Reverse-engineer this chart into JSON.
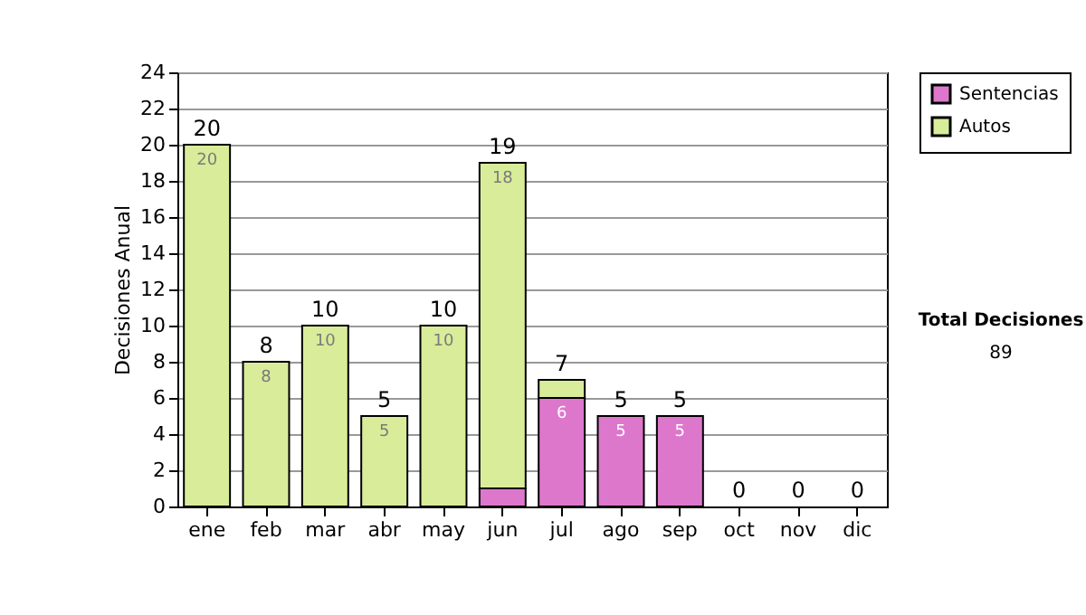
{
  "chart_data": {
    "type": "bar",
    "ylabel": "Decisiones Anual",
    "categories": [
      "ene",
      "feb",
      "mar",
      "abr",
      "may",
      "jun",
      "jul",
      "ago",
      "sep",
      "oct",
      "nov",
      "dic"
    ],
    "series": [
      {
        "name": "Sentencias",
        "color": "#dd77cc",
        "values": [
          0,
          0,
          0,
          0,
          0,
          1,
          6,
          5,
          5,
          0,
          0,
          0
        ],
        "value_labels": [
          null,
          null,
          null,
          null,
          null,
          null,
          "6",
          "5",
          "5",
          null,
          null,
          null
        ]
      },
      {
        "name": "Autos",
        "color": "#d9ec9a",
        "values": [
          20,
          8,
          10,
          5,
          10,
          18,
          1,
          0,
          0,
          0,
          0,
          0
        ],
        "value_labels": [
          "20",
          "8",
          "10",
          "5",
          "10",
          "18",
          null,
          null,
          null,
          null,
          null,
          null
        ]
      }
    ],
    "stacked": true,
    "totals": [
      "20",
      "8",
      "10",
      "5",
      "10",
      "19",
      "7",
      "5",
      "5",
      "0",
      "0",
      "0"
    ],
    "ylim": [
      0,
      24
    ],
    "yticks": [
      0,
      2,
      4,
      6,
      8,
      10,
      12,
      14,
      16,
      18,
      20,
      22,
      24
    ],
    "grid": "y",
    "legend": "right",
    "annotations": [
      "Total Decisiones",
      "89"
    ]
  }
}
